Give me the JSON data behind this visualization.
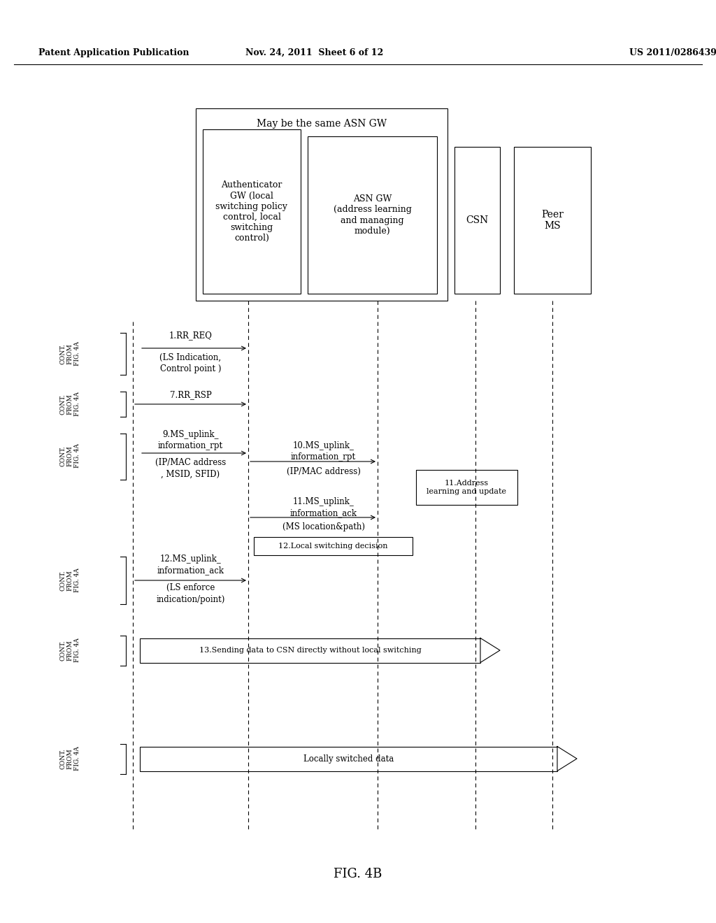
{
  "title_left": "Patent Application Publication",
  "title_mid": "Nov. 24, 2011  Sheet 6 of 12",
  "title_right": "US 2011/0286439 A1",
  "fig_label": "FIG. 4B",
  "background": "#ffffff",
  "header_text": "May be the same ASN GW",
  "box1_text": "Authenticator\nGW (local\nswitching policy\ncontrol, local\nswitching\ncontrol)",
  "box2_text": "ASN GW\n(address learning\nand managing\nmodule)",
  "csn_text": "CSN",
  "peer_ms_text": "Peer\nMS"
}
